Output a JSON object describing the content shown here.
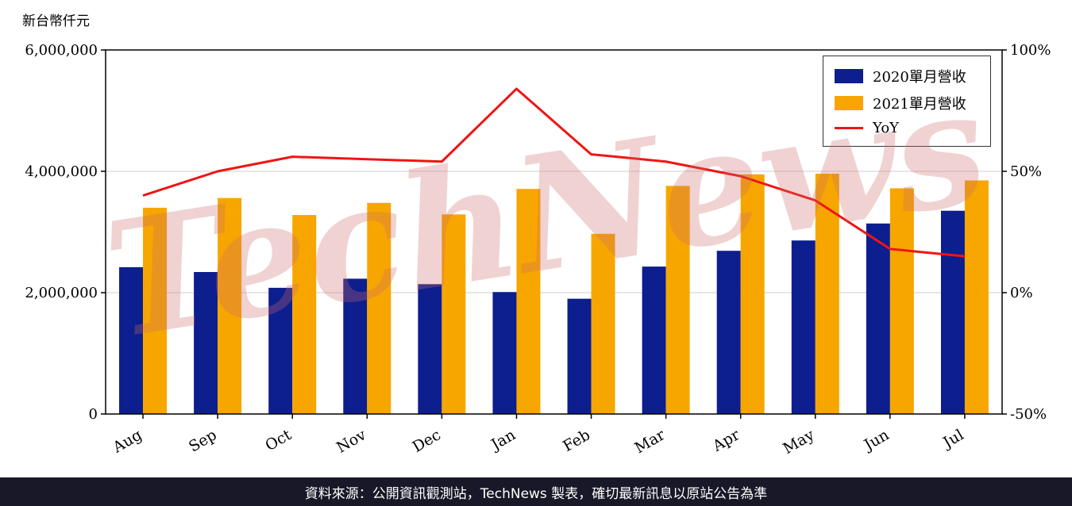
{
  "page": {
    "unit_label": "新台幣仟元",
    "watermark": "TechNews",
    "footer": "資料來源：公開資訊觀測站，TechNews 製表，確切最新訊息以原站公告為準"
  },
  "chart_data": {
    "type": "bar",
    "categories": [
      "Aug",
      "Sep",
      "Oct",
      "Nov",
      "Dec",
      "Jan",
      "Feb",
      "Mar",
      "Apr",
      "May",
      "Jun",
      "Jul"
    ],
    "series": [
      {
        "name": "2020單月營收",
        "type": "bar",
        "axis": "left",
        "color": "#0d1e8e",
        "values": [
          2420000,
          2340000,
          2080000,
          2230000,
          2140000,
          2010000,
          1900000,
          2430000,
          2690000,
          2860000,
          3140000,
          3350000
        ]
      },
      {
        "name": "2021單月營收",
        "type": "bar",
        "axis": "left",
        "color": "#f7a600",
        "values": [
          3400000,
          3560000,
          3280000,
          3480000,
          3290000,
          3710000,
          2970000,
          3760000,
          3950000,
          3960000,
          3720000,
          3850000
        ]
      },
      {
        "name": "YoY",
        "type": "line",
        "axis": "right",
        "color": "#f01414",
        "values": [
          40,
          50,
          56,
          55,
          54,
          84,
          57,
          54,
          48,
          38,
          18,
          15
        ]
      }
    ],
    "left_axis": {
      "min": 0,
      "max": 6000000,
      "tick_values": [
        0,
        2000000,
        4000000,
        6000000
      ],
      "ticks": [
        "0",
        "2,000,000",
        "4,000,000",
        "6,000,000"
      ]
    },
    "right_axis": {
      "min": -50,
      "max": 100,
      "tick_values": [
        -50,
        0,
        50,
        100
      ],
      "ticks": [
        "-50%",
        "0%",
        "50%",
        "100%"
      ]
    },
    "title": "",
    "xlabel": "",
    "ylabel_left": "新台幣仟元",
    "grid": true,
    "legend_position": "top-right"
  }
}
